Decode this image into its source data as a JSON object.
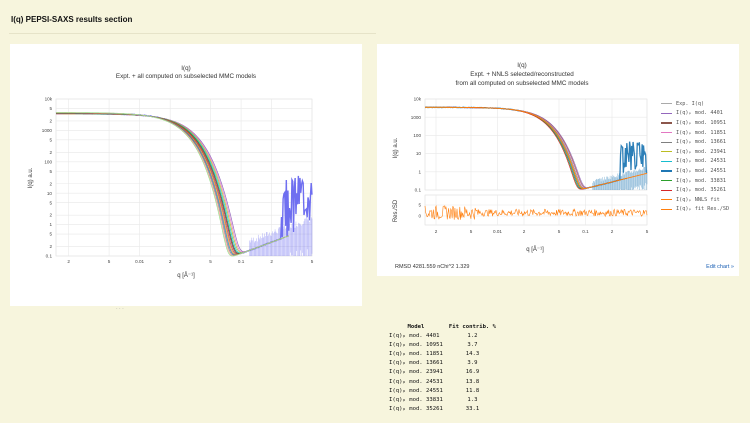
{
  "section_title": "I(q) PEPSI-SAXS results section",
  "colors": {
    "background": "#f7f5dd",
    "experimental": "#6f6ff0",
    "exp_right": "#2c7fb8",
    "residuals": "#ff7f0e",
    "link": "#1a5fb4"
  },
  "left_chart": {
    "title": "I(q)",
    "subtitle": "Expt. + all computed on subselected MMC models",
    "xlabel": "q [Å⁻¹]",
    "ylabel": "I(q) a.u."
  },
  "right_chart": {
    "title": "I(q)",
    "subtitle_line1": "Expt. + NNLS selected/reconstructed",
    "subtitle_line2": "from all computed on subselected MMC models",
    "xlabel": "q [Å⁻¹]",
    "ylabel_top": "I(q) a.u.",
    "ylabel_bottom": "Res./SD",
    "footer": "RMSD 4281.559   nChi^2 1.329",
    "edit_link": "Edit chart »"
  },
  "chart_data": [
    {
      "type": "line",
      "scale": "log-log",
      "xlim": [
        0.0015,
        0.5
      ],
      "ylim": [
        0.1,
        10000
      ],
      "x_ticks": [
        "2",
        "5",
        "0.01",
        "2",
        "5",
        "0.1",
        "2",
        "5"
      ],
      "y_ticks": [
        "0.1",
        "2",
        "5",
        "1",
        "2",
        "5",
        "10",
        "2",
        "5",
        "100",
        "2",
        "5",
        "1000",
        "2",
        "5",
        "10k"
      ],
      "series_count": 12
    },
    {
      "type": "line",
      "scale": "log-log",
      "xlim": [
        0.0015,
        0.5
      ],
      "ylim": [
        0.1,
        10000
      ],
      "y_ticks": [
        "0.1",
        "1",
        "10",
        "100",
        "1000",
        "10k"
      ],
      "res_ticks": [
        "5",
        "0"
      ],
      "x_ticks": [
        "2",
        "5",
        "0.01",
        "2",
        "5",
        "0.1",
        "2",
        "5"
      ],
      "series": [
        {
          "name": "Exp. I(q)",
          "color": "#aaaaaa"
        },
        {
          "name": "I(q)ₚ mod. 4401",
          "color": "#9467bd"
        },
        {
          "name": "I(q)ₚ mod. 10951",
          "color": "#8c564b"
        },
        {
          "name": "I(q)ₚ mod. 11851",
          "color": "#e377c2"
        },
        {
          "name": "I(q)ₚ mod. 13661",
          "color": "#7f7f7f"
        },
        {
          "name": "I(q)ₚ mod. 23941",
          "color": "#bcbd22"
        },
        {
          "name": "I(q)ₚ mod. 24531",
          "color": "#17becf"
        },
        {
          "name": "I(q)ₚ mod. 24551",
          "color": "#1f77b4"
        },
        {
          "name": "I(q)ₚ mod. 33831",
          "color": "#2ca02c"
        },
        {
          "name": "I(q)ₚ mod. 35261",
          "color": "#d62728"
        },
        {
          "name": "I(q)ₚ NNLS fit",
          "color": "#ff7f0e"
        },
        {
          "name": "I(q)ₚ fit Res./SD",
          "color": "#ff7f0e"
        }
      ]
    }
  ],
  "fit_table": {
    "headers": [
      "Model",
      "Fit contrib. %"
    ],
    "rows": [
      [
        "I(q)ₚ mod. 4401",
        "1.2"
      ],
      [
        "I(q)ₚ mod. 10951",
        "3.7"
      ],
      [
        "I(q)ₚ mod. 11851",
        "14.3"
      ],
      [
        "I(q)ₚ mod. 13661",
        "3.9"
      ],
      [
        "I(q)ₚ mod. 23941",
        "16.9"
      ],
      [
        "I(q)ₚ mod. 24531",
        "13.8"
      ],
      [
        "I(q)ₚ mod. 24551",
        "11.8"
      ],
      [
        "I(q)ₚ mod. 33831",
        "1.3"
      ],
      [
        "I(q)ₚ mod. 35261",
        "33.1"
      ]
    ]
  }
}
